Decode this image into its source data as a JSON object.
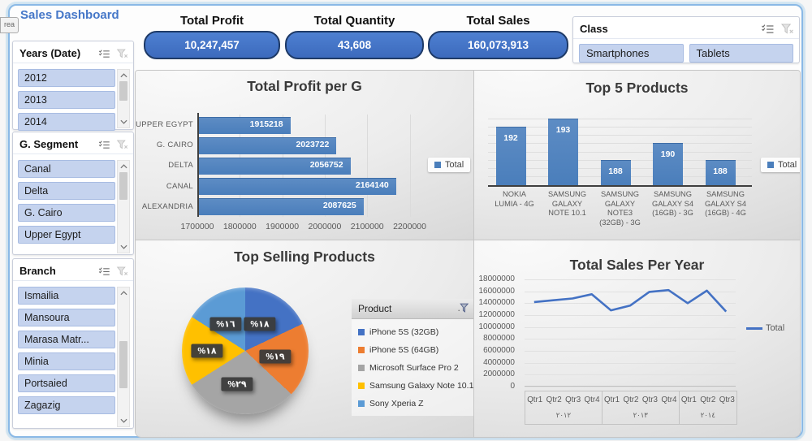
{
  "page": {
    "side_tab": "rea"
  },
  "header": {
    "title": "Sales Dashboard",
    "kpis": [
      {
        "label": "Total Profit",
        "value": "10,247,457"
      },
      {
        "label": "Total Quantity",
        "value": "43,608"
      },
      {
        "label": "Total Sales",
        "value": "160,073,913"
      }
    ]
  },
  "class_slicer": {
    "title": "Class",
    "items": [
      "Smartphones",
      "Tablets"
    ]
  },
  "slicers": [
    {
      "title": "Years (Date)",
      "items": [
        "2012",
        "2013",
        "2014"
      ]
    },
    {
      "title": "G. Segment",
      "items": [
        "Canal",
        "Delta",
        "G. Cairo",
        "Upper Egypt"
      ]
    },
    {
      "title": "Branch",
      "items": [
        "Ismailia",
        "Mansoura",
        "Marasa Matr...",
        "Minia",
        "Portsaied",
        "Zagazig"
      ]
    }
  ],
  "colors": {
    "bar_blue": "#4a7ebb",
    "accent_blue": "#4472c4",
    "kpi_fill": "#3f6fc1",
    "kpi_border": "#1e3a67",
    "slicer_item": "#c5d3ee"
  },
  "chart_data": [
    {
      "type": "bar",
      "orientation": "horizontal",
      "title": "Total Profit per G",
      "categories": [
        "UPPER EGYPT",
        "G. CAIRO",
        "DELTA",
        "CANAL",
        "ALEXANDRIA"
      ],
      "values": [
        1915218,
        2023722,
        2056752,
        2164140,
        2087625
      ],
      "xlim": [
        1700000,
        2220000
      ],
      "x_ticks": [
        "1700000",
        "1800000",
        "1900000",
        "2000000",
        "2100000",
        "2200000"
      ],
      "legend": "Total",
      "grid": true
    },
    {
      "type": "bar",
      "orientation": "vertical",
      "title": "Top 5 Products",
      "categories": [
        "NOKIA LUMIA - 4G",
        "SAMSUNG GALAXY NOTE 10.1",
        "SAMSUNG GALAXY NOTE3 (32GB) - 3G",
        "SAMSUNG GALAXY S4 (16GB) - 3G",
        "SAMSUNG GALAXY S4 (16GB) - 4G"
      ],
      "values": [
        192,
        193,
        188,
        190,
        188
      ],
      "ylim": [
        185,
        194
      ],
      "legend": "Total",
      "grid": true
    },
    {
      "type": "pie",
      "title": "Top Selling Products",
      "legend_title": "Product",
      "slices": [
        {
          "name": "iPhone 5S (32GB)",
          "pct": 18,
          "label": "%١٨",
          "color": "#4472c4"
        },
        {
          "name": "iPhone 5S (64GB)",
          "pct": 19,
          "label": "%١٩",
          "color": "#ed7d31"
        },
        {
          "name": "Microsoft Surface Pro 2",
          "pct": 29,
          "label": "%٢٩",
          "color": "#a5a5a5"
        },
        {
          "name": "Samsung Galaxy Note 10.1",
          "pct": 18,
          "label": "%١٨",
          "color": "#ffc000"
        },
        {
          "name": "Sony Xperia Z",
          "pct": 16,
          "label": "%١٦",
          "color": "#5b9bd5"
        }
      ]
    },
    {
      "type": "line",
      "title": "Total Sales Per Year",
      "legend": "Total",
      "ylim": [
        0,
        18000000
      ],
      "y_ticks": [
        "18000000",
        "16000000",
        "14000000",
        "12000000",
        "10000000",
        "8000000",
        "6000000",
        "4000000",
        "2000000",
        "0"
      ],
      "groups": [
        {
          "year": "٢٠١٢",
          "quarters": [
            "Qtr1",
            "Qtr2",
            "Qtr3",
            "Qtr4"
          ]
        },
        {
          "year": "٢٠١٣",
          "quarters": [
            "Qtr1",
            "Qtr2",
            "Qtr3",
            "Qtr4"
          ]
        },
        {
          "year": "٢٠١٤",
          "quarters": [
            "Qtr1",
            "Qtr2",
            "Qtr3"
          ]
        }
      ],
      "values": [
        14200000,
        14500000,
        14800000,
        15500000,
        12800000,
        13600000,
        15900000,
        16200000,
        14000000,
        16100000,
        12600000
      ],
      "line_color": "#4472c4",
      "grid": true
    }
  ],
  "icons": {
    "multi_select": "checklist",
    "clear_filter": "funnel-x",
    "scroll_up": "chevron-up",
    "scroll_down": "chevron-down",
    "legend_filter": "funnel"
  }
}
